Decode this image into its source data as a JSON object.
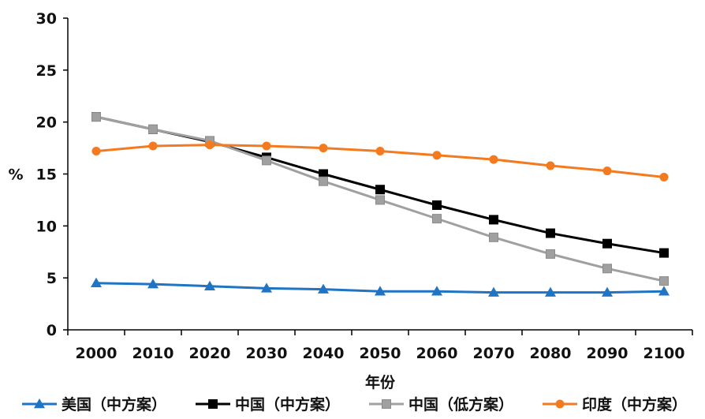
{
  "chart_data": {
    "type": "line",
    "title": "",
    "xlabel": "年份",
    "ylabel": "%",
    "x": [
      2000,
      2010,
      2020,
      2030,
      2040,
      2050,
      2060,
      2070,
      2080,
      2090,
      2100
    ],
    "xlim": [
      1995,
      2105
    ],
    "ylim": [
      0,
      30
    ],
    "yticks": [
      0,
      5,
      10,
      15,
      20,
      25,
      30
    ],
    "grid": false,
    "legend_position": "bottom",
    "series": [
      {
        "name": "美国（中方案）",
        "color": "#1f74c4",
        "marker": "triangle",
        "values": [
          4.5,
          4.4,
          4.2,
          4.0,
          3.9,
          3.7,
          3.7,
          3.6,
          3.6,
          3.6,
          3.7
        ]
      },
      {
        "name": "中国（中方案）",
        "color": "#000000",
        "marker": "square",
        "values": [
          20.5,
          19.3,
          18.1,
          16.6,
          15.0,
          13.5,
          12.0,
          10.6,
          9.3,
          8.3,
          7.4
        ]
      },
      {
        "name": "中国（低方案）",
        "color": "#a0a0a0",
        "marker": "square",
        "values": [
          20.5,
          19.3,
          18.2,
          16.3,
          14.3,
          12.5,
          10.7,
          8.9,
          7.3,
          5.9,
          4.7
        ]
      },
      {
        "name": "印度（中方案）",
        "color": "#f47a20",
        "marker": "circle",
        "values": [
          17.2,
          17.7,
          17.8,
          17.7,
          17.5,
          17.2,
          16.8,
          16.4,
          15.8,
          15.3,
          14.7
        ]
      }
    ]
  }
}
